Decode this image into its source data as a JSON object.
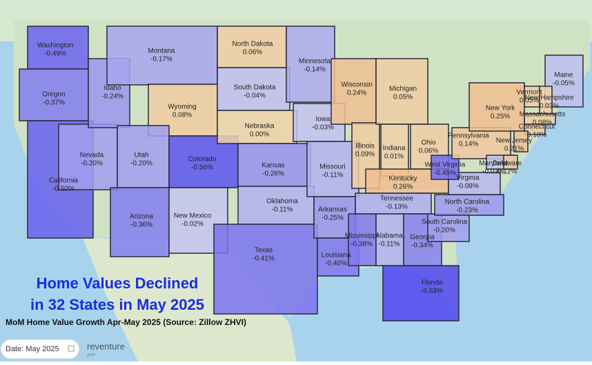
{
  "title_lines": [
    "Home Values Declined",
    "in 32 States in May 2025"
  ],
  "subtitle": "MoM Home Value Growth Apr-May 2025 (Source: Zillow ZHVI)",
  "date_control": "Date: May 2025",
  "brand": {
    "name": "reventure",
    "tag": "APP"
  },
  "states": [
    {
      "name": "Washington",
      "value": "-0.49%"
    },
    {
      "name": "Oregon",
      "value": "-0.37%"
    },
    {
      "name": "California",
      "value": "-0.50%"
    },
    {
      "name": "Nevada",
      "value": "-0.20%"
    },
    {
      "name": "Idaho",
      "value": "-0.24%"
    },
    {
      "name": "Montana",
      "value": "-0.17%"
    },
    {
      "name": "Wyoming",
      "value": "0.08%"
    },
    {
      "name": "Utah",
      "value": "-0.20%"
    },
    {
      "name": "Colorado",
      "value": "-0.56%"
    },
    {
      "name": "Arizona",
      "value": "-0.36%"
    },
    {
      "name": "New Mexico",
      "value": "-0.02%"
    },
    {
      "name": "North Dakota",
      "value": "0.06%"
    },
    {
      "name": "South Dakota",
      "value": "-0.04%"
    },
    {
      "name": "Nebraska",
      "value": "0.00%"
    },
    {
      "name": "Kansas",
      "value": "-0.26%"
    },
    {
      "name": "Oklahoma",
      "value": "-0.11%"
    },
    {
      "name": "Texas",
      "value": "-0.41%"
    },
    {
      "name": "Minnesota",
      "value": "-0.14%"
    },
    {
      "name": "Iowa",
      "value": "-0.03%"
    },
    {
      "name": "Missouri",
      "value": "-0.11%"
    },
    {
      "name": "Arkansas",
      "value": "-0.25%"
    },
    {
      "name": "Louisiana",
      "value": "-0.40%"
    },
    {
      "name": "Wisconsin",
      "value": "0.24%"
    },
    {
      "name": "Illinois",
      "value": "0.09%"
    },
    {
      "name": "Michigan",
      "value": "0.05%"
    },
    {
      "name": "Indiana",
      "value": "0.01%"
    },
    {
      "name": "Ohio",
      "value": "0.06%"
    },
    {
      "name": "Kentucky",
      "value": "0.26%"
    },
    {
      "name": "Tennessee",
      "value": "-0.13%"
    },
    {
      "name": "Mississippi",
      "value": "-0.38%"
    },
    {
      "name": "Alabama",
      "value": "-0.11%"
    },
    {
      "name": "Georgia",
      "value": "-0.34%"
    },
    {
      "name": "Florida",
      "value": "-0.63%"
    },
    {
      "name": "South Carolina",
      "value": "-0.20%"
    },
    {
      "name": "North Carolina",
      "value": "-0.23%"
    },
    {
      "name": "Virginia",
      "value": "-0.08%"
    },
    {
      "name": "West Virginia",
      "value": "-0.45%"
    },
    {
      "name": "Pennsylvania",
      "value": "0.14%"
    },
    {
      "name": "New York",
      "value": "0.25%"
    },
    {
      "name": "Maine",
      "value": "-0.05%"
    },
    {
      "name": "Vermont",
      "value": "0.05%"
    },
    {
      "name": "New Hampshire",
      "value": "0.03%"
    },
    {
      "name": "Massachusetts",
      "value": "0.08%"
    },
    {
      "name": "Connecticut",
      "value": "0.10%"
    },
    {
      "name": "New Jersey",
      "value": "0.21%"
    },
    {
      "name": "Maryland",
      "value": "-0.03%"
    },
    {
      "name": "Delaware",
      "value": "0.12%"
    }
  ]
}
